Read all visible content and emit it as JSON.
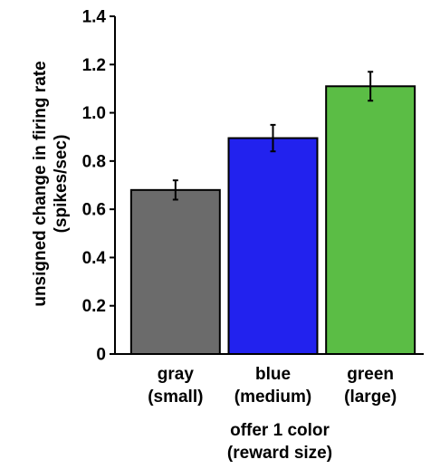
{
  "chart_data": {
    "type": "bar",
    "categories": [
      {
        "line1": "gray",
        "line2": "(small)"
      },
      {
        "line1": "blue",
        "line2": "(medium)"
      },
      {
        "line1": "green",
        "line2": "(large)"
      }
    ],
    "values": [
      0.68,
      0.895,
      1.11
    ],
    "errors": [
      0.04,
      0.055,
      0.06
    ],
    "colors": [
      "#6b6b6b",
      "#2222ee",
      "#5bbd45"
    ],
    "ylabel_line1": "unsigned change in firing rate",
    "ylabel_line2": "(spikes/sec)",
    "xlabel_line1": "offer 1 color",
    "xlabel_line2": "(reward size)",
    "ylim": [
      0,
      1.4
    ],
    "yticks": [
      {
        "value": 0,
        "label": "0"
      },
      {
        "value": 0.2,
        "label": "0.2"
      },
      {
        "value": 0.4,
        "label": "0.4"
      },
      {
        "value": 0.6,
        "label": "0.6"
      },
      {
        "value": 0.8,
        "label": "0.8"
      },
      {
        "value": 1.0,
        "label": "1.0"
      },
      {
        "value": 1.2,
        "label": "1.2"
      },
      {
        "value": 1.4,
        "label": "1.4"
      }
    ],
    "grid": false,
    "legend": "none"
  }
}
